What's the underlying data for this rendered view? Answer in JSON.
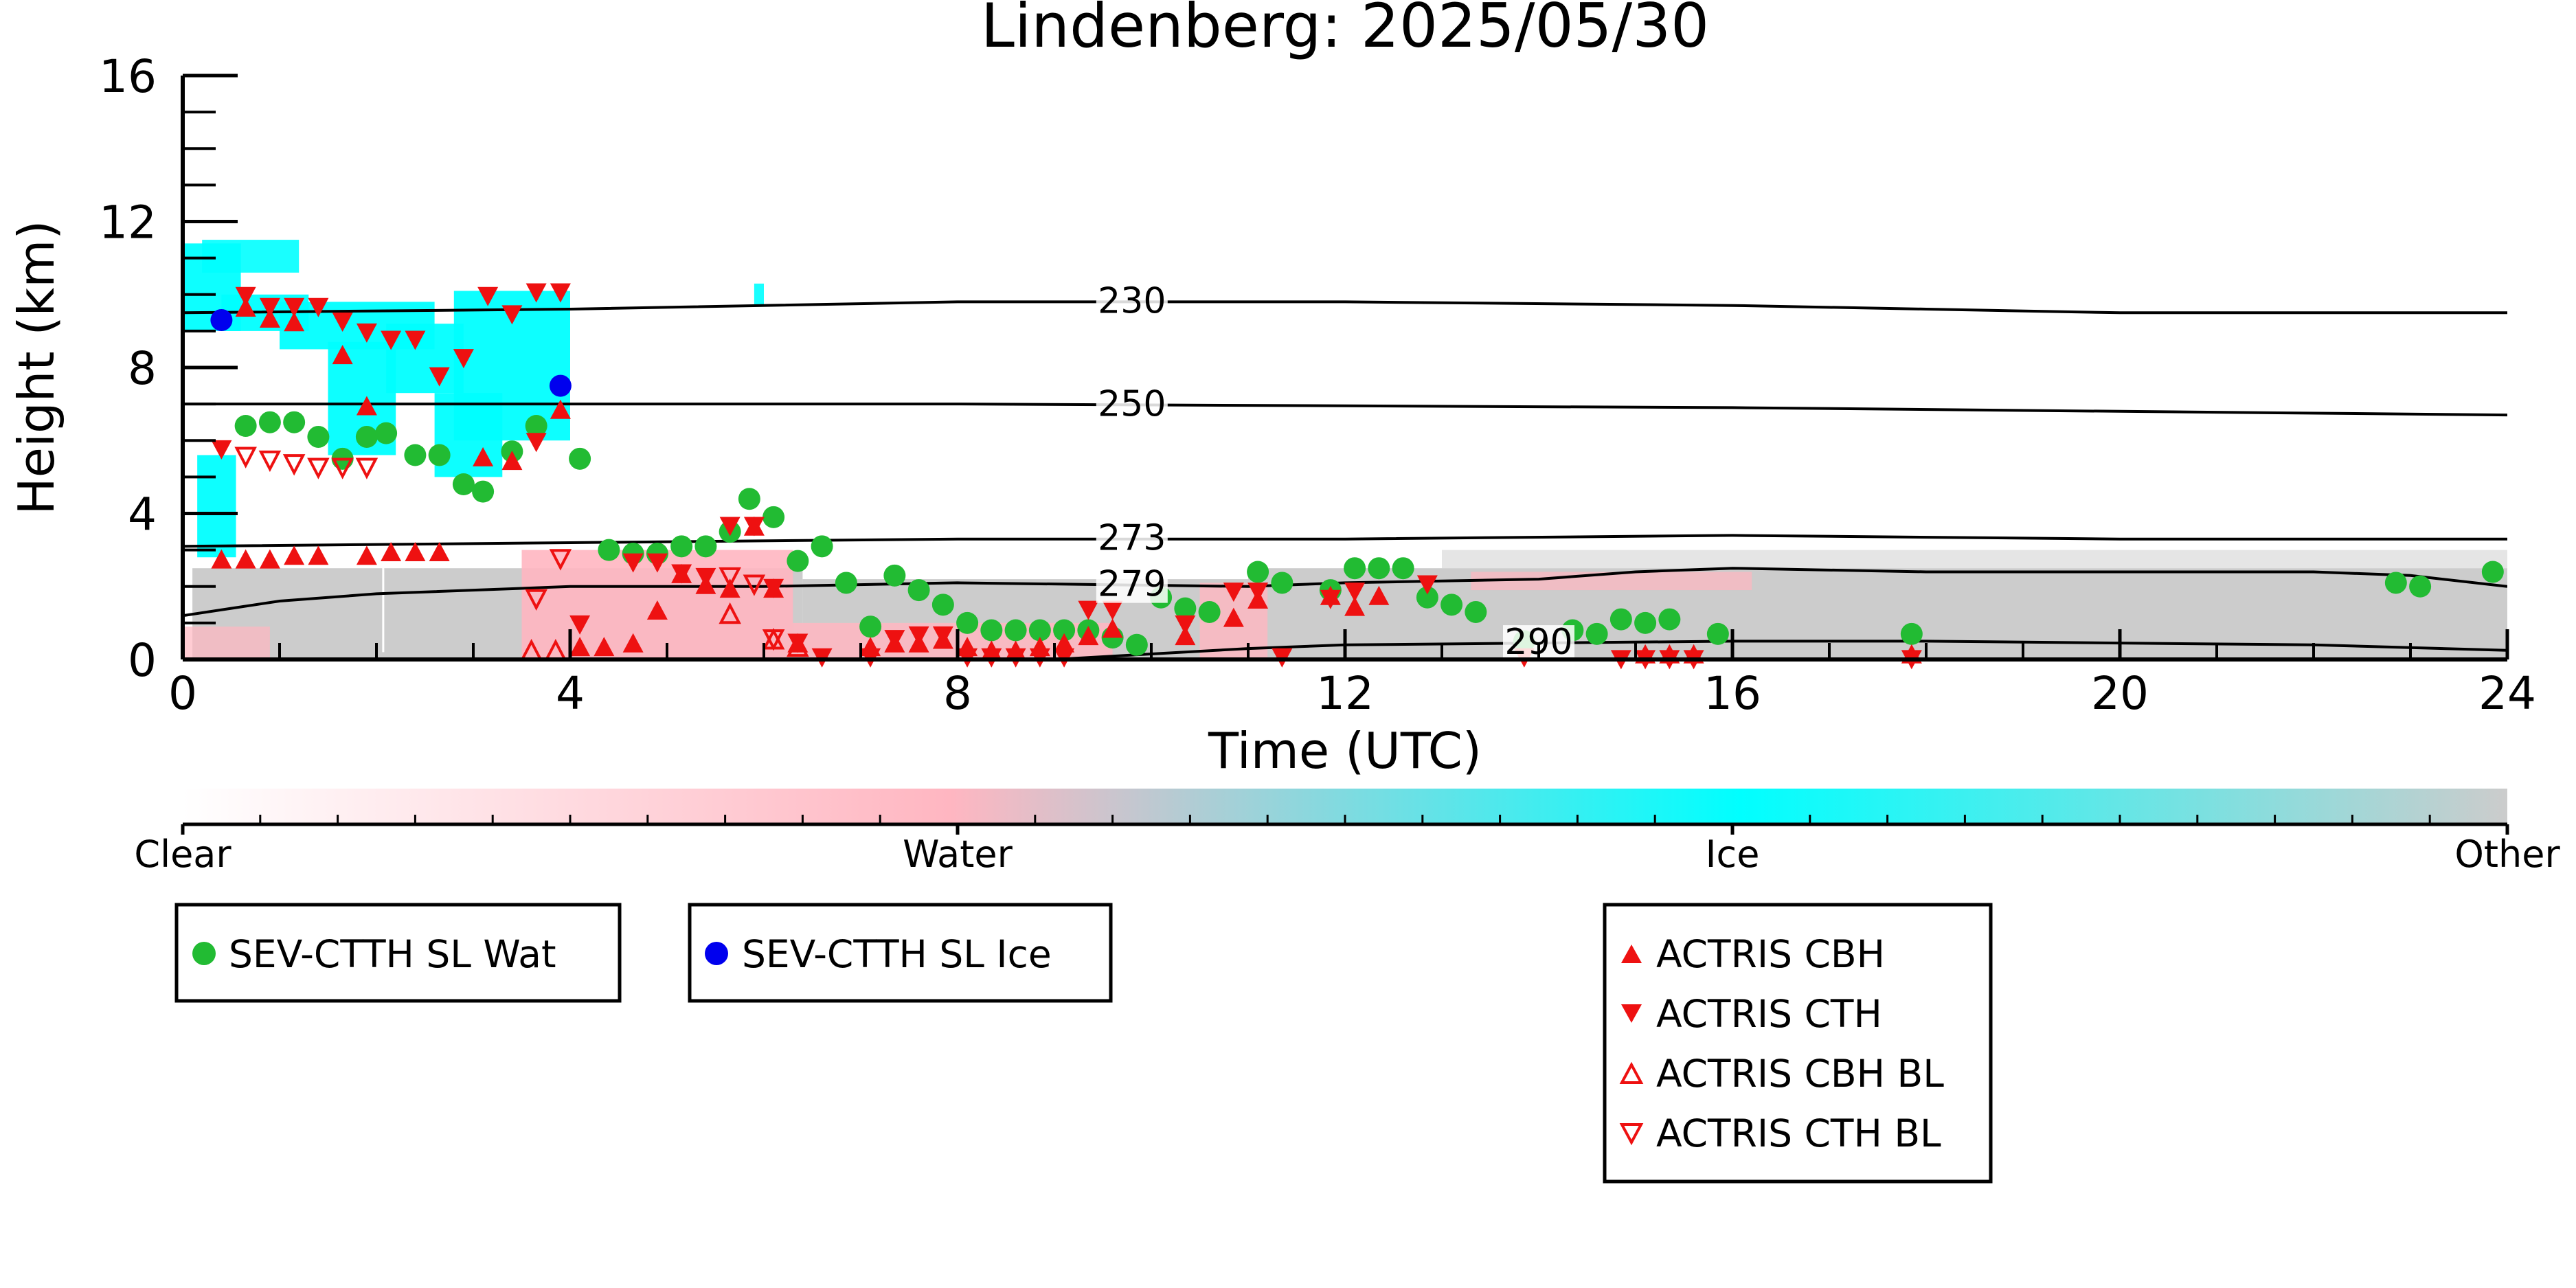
{
  "chart_data": {
    "type": "scatter",
    "title": "Lindenberg: 2025/05/30",
    "xlabel": "Time (UTC)",
    "ylabel": "Height (km)",
    "xlim": [
      0,
      24
    ],
    "ylim": [
      0,
      16
    ],
    "xticks": [
      "0",
      "4",
      "8",
      "12",
      "16",
      "20",
      "24"
    ],
    "yticks": [
      "0",
      "4",
      "8",
      "12",
      "16"
    ],
    "colorbar": {
      "labels": [
        "Clear",
        "Water",
        "Ice",
        "Other"
      ],
      "colors": [
        "#ffffff",
        "#ffb6c1",
        "#00ffff",
        "#cccccc"
      ]
    },
    "isotherms": [
      {
        "label": "230",
        "label_x": 9.8,
        "points": [
          [
            0,
            9.5
          ],
          [
            4,
            9.6
          ],
          [
            8,
            9.8
          ],
          [
            12,
            9.8
          ],
          [
            16,
            9.7
          ],
          [
            18,
            9.6
          ],
          [
            20,
            9.5
          ],
          [
            24,
            9.5
          ]
        ]
      },
      {
        "label": "250",
        "label_x": 9.8,
        "points": [
          [
            0,
            7.0
          ],
          [
            4,
            7.0
          ],
          [
            8,
            7.0
          ],
          [
            12,
            6.95
          ],
          [
            16,
            6.9
          ],
          [
            20,
            6.8
          ],
          [
            24,
            6.7
          ]
        ]
      },
      {
        "label": "273",
        "label_x": 9.8,
        "points": [
          [
            0,
            3.1
          ],
          [
            4,
            3.2
          ],
          [
            8,
            3.3
          ],
          [
            12,
            3.3
          ],
          [
            16,
            3.4
          ],
          [
            20,
            3.3
          ],
          [
            24,
            3.3
          ]
        ]
      },
      {
        "label": "279",
        "label_x": 9.8,
        "points": [
          [
            0,
            1.2
          ],
          [
            0.5,
            1.4
          ],
          [
            1,
            1.6
          ],
          [
            2,
            1.8
          ],
          [
            4,
            2.0
          ],
          [
            6,
            2.0
          ],
          [
            8,
            2.1
          ],
          [
            9.5,
            2.05
          ],
          [
            11,
            2.0
          ],
          [
            12,
            2.1
          ],
          [
            14,
            2.2
          ],
          [
            15,
            2.4
          ],
          [
            16,
            2.5
          ],
          [
            18,
            2.4
          ],
          [
            20,
            2.4
          ],
          [
            22,
            2.4
          ],
          [
            23,
            2.3
          ],
          [
            24,
            2.0
          ]
        ]
      },
      {
        "label": "290",
        "label_x": 14.0,
        "points": [
          [
            9,
            0.0
          ],
          [
            10,
            0.15
          ],
          [
            11,
            0.3
          ],
          [
            12,
            0.4
          ],
          [
            14,
            0.45
          ],
          [
            16,
            0.5
          ],
          [
            18,
            0.5
          ],
          [
            20,
            0.45
          ],
          [
            22,
            0.4
          ],
          [
            24,
            0.25
          ]
        ]
      }
    ],
    "series": [
      {
        "name": "SEV-CTTH SL Wat",
        "marker": "circle",
        "color": "#22bb33",
        "points": [
          [
            0.65,
            6.4
          ],
          [
            0.9,
            6.5
          ],
          [
            1.15,
            6.5
          ],
          [
            1.4,
            6.1
          ],
          [
            1.65,
            5.5
          ],
          [
            1.9,
            6.1
          ],
          [
            2.1,
            6.2
          ],
          [
            2.4,
            5.6
          ],
          [
            2.65,
            5.6
          ],
          [
            2.9,
            4.8
          ],
          [
            3.1,
            4.6
          ],
          [
            3.4,
            5.7
          ],
          [
            3.65,
            6.4
          ],
          [
            4.1,
            5.5
          ],
          [
            4.4,
            3.0
          ],
          [
            4.65,
            2.9
          ],
          [
            4.9,
            2.9
          ],
          [
            5.15,
            3.1
          ],
          [
            5.4,
            3.1
          ],
          [
            5.65,
            3.5
          ],
          [
            5.85,
            4.4
          ],
          [
            6.1,
            3.9
          ],
          [
            6.35,
            2.7
          ],
          [
            6.6,
            3.1
          ],
          [
            6.85,
            2.1
          ],
          [
            7.1,
            0.9
          ],
          [
            7.35,
            2.3
          ],
          [
            7.6,
            1.9
          ],
          [
            7.85,
            1.5
          ],
          [
            8.1,
            1.0
          ],
          [
            8.35,
            0.8
          ],
          [
            8.6,
            0.8
          ],
          [
            8.85,
            0.8
          ],
          [
            9.1,
            0.8
          ],
          [
            9.35,
            0.8
          ],
          [
            9.6,
            0.6
          ],
          [
            9.85,
            0.4
          ],
          [
            10.1,
            1.7
          ],
          [
            10.35,
            1.4
          ],
          [
            10.6,
            1.3
          ],
          [
            11.1,
            2.4
          ],
          [
            11.35,
            2.1
          ],
          [
            11.85,
            1.9
          ],
          [
            12.1,
            2.5
          ],
          [
            12.35,
            2.5
          ],
          [
            12.6,
            2.5
          ],
          [
            12.85,
            1.7
          ],
          [
            13.1,
            1.5
          ],
          [
            13.35,
            1.3
          ],
          [
            13.85,
            0.5
          ],
          [
            14.35,
            0.8
          ],
          [
            14.6,
            0.7
          ],
          [
            14.85,
            1.1
          ],
          [
            15.1,
            1.0
          ],
          [
            15.35,
            1.1
          ],
          [
            15.85,
            0.7
          ],
          [
            17.85,
            0.7
          ],
          [
            22.85,
            2.1
          ],
          [
            23.1,
            2.0
          ],
          [
            23.85,
            2.4
          ]
        ]
      },
      {
        "name": "SEV-CTTH SL Ice",
        "marker": "circle",
        "color": "#0000ee",
        "points": [
          [
            0.4,
            9.3
          ],
          [
            3.9,
            7.5
          ]
        ]
      },
      {
        "name": "ACTRIS CBH",
        "marker": "triangle-up",
        "color": "#ee1111",
        "points": [
          [
            0.4,
            2.7
          ],
          [
            0.65,
            9.6
          ],
          [
            0.9,
            9.3
          ],
          [
            1.15,
            9.2
          ],
          [
            0.65,
            2.7
          ],
          [
            0.9,
            2.7
          ],
          [
            1.15,
            2.8
          ],
          [
            1.4,
            2.8
          ],
          [
            1.65,
            8.3
          ],
          [
            1.9,
            6.9
          ],
          [
            1.9,
            2.8
          ],
          [
            2.15,
            2.9
          ],
          [
            2.4,
            2.9
          ],
          [
            2.65,
            2.9
          ],
          [
            3.1,
            5.5
          ],
          [
            3.4,
            5.4
          ],
          [
            3.9,
            6.8
          ],
          [
            4.1,
            0.3
          ],
          [
            4.35,
            0.3
          ],
          [
            4.65,
            0.4
          ],
          [
            4.9,
            1.3
          ],
          [
            5.15,
            2.3
          ],
          [
            5.4,
            2.0
          ],
          [
            5.65,
            1.9
          ],
          [
            5.9,
            3.6
          ],
          [
            6.1,
            1.9
          ],
          [
            6.35,
            0.4
          ],
          [
            7.1,
            0.3
          ],
          [
            7.35,
            0.4
          ],
          [
            7.6,
            0.4
          ],
          [
            7.85,
            0.5
          ],
          [
            8.1,
            0.3
          ],
          [
            8.35,
            0.2
          ],
          [
            8.6,
            0.2
          ],
          [
            8.85,
            0.3
          ],
          [
            9.1,
            0.4
          ],
          [
            9.35,
            0.6
          ],
          [
            9.6,
            0.8
          ],
          [
            10.35,
            0.6
          ],
          [
            10.85,
            1.1
          ],
          [
            11.1,
            1.6
          ],
          [
            11.85,
            1.7
          ],
          [
            12.1,
            1.4
          ],
          [
            12.35,
            1.7
          ],
          [
            15.1,
            0.1
          ],
          [
            15.35,
            0.1
          ],
          [
            15.6,
            0.1
          ],
          [
            17.85,
            0.1
          ]
        ]
      },
      {
        "name": "ACTRIS CTH",
        "marker": "triangle-down",
        "color": "#ee1111",
        "points": [
          [
            0.4,
            5.8
          ],
          [
            0.65,
            10.0
          ],
          [
            0.9,
            9.7
          ],
          [
            1.15,
            9.7
          ],
          [
            1.4,
            9.7
          ],
          [
            1.65,
            9.3
          ],
          [
            1.9,
            9.0
          ],
          [
            2.15,
            8.8
          ],
          [
            2.4,
            8.8
          ],
          [
            2.65,
            7.8
          ],
          [
            2.9,
            8.3
          ],
          [
            3.15,
            10.0
          ],
          [
            3.4,
            9.5
          ],
          [
            3.65,
            10.1
          ],
          [
            3.9,
            10.1
          ],
          [
            3.65,
            6.0
          ],
          [
            4.1,
            1.0
          ],
          [
            4.65,
            2.7
          ],
          [
            4.9,
            2.7
          ],
          [
            5.15,
            2.4
          ],
          [
            5.4,
            2.3
          ],
          [
            5.65,
            3.7
          ],
          [
            5.9,
            3.7
          ],
          [
            6.1,
            2.0
          ],
          [
            6.35,
            0.5
          ],
          [
            6.6,
            0.1
          ],
          [
            7.1,
            0.1
          ],
          [
            7.35,
            0.6
          ],
          [
            7.6,
            0.7
          ],
          [
            7.85,
            0.7
          ],
          [
            8.1,
            0.1
          ],
          [
            8.35,
            0.1
          ],
          [
            8.6,
            0.1
          ],
          [
            8.85,
            0.1
          ],
          [
            9.1,
            0.1
          ],
          [
            9.35,
            1.4
          ],
          [
            9.6,
            1.4
          ],
          [
            10.35,
            1.0
          ],
          [
            10.85,
            1.9
          ],
          [
            11.1,
            1.9
          ],
          [
            11.35,
            0.1
          ],
          [
            11.85,
            1.7
          ],
          [
            12.1,
            1.9
          ],
          [
            12.85,
            2.1
          ],
          [
            13.85,
            0.1
          ],
          [
            14.85,
            0.05
          ],
          [
            15.1,
            0.05
          ],
          [
            15.35,
            0.05
          ],
          [
            15.6,
            0.05
          ],
          [
            17.85,
            0.05
          ]
        ]
      },
      {
        "name": "ACTRIS CBH BL",
        "marker": "triangle-up-open",
        "color": "#ee1111",
        "points": [
          [
            3.6,
            0.2
          ],
          [
            3.85,
            0.2
          ],
          [
            5.65,
            1.2
          ],
          [
            6.1,
            0.5
          ],
          [
            6.35,
            0.3
          ]
        ]
      },
      {
        "name": "ACTRIS CTH BL",
        "marker": "triangle-down-open",
        "color": "#ee1111",
        "points": [
          [
            0.65,
            5.6
          ],
          [
            0.9,
            5.5
          ],
          [
            1.15,
            5.4
          ],
          [
            1.4,
            5.3
          ],
          [
            1.65,
            5.3
          ],
          [
            1.9,
            5.3
          ],
          [
            3.65,
            1.7
          ],
          [
            3.9,
            2.8
          ],
          [
            5.65,
            2.3
          ],
          [
            5.9,
            2.1
          ],
          [
            6.1,
            0.6
          ]
        ]
      }
    ],
    "legend_groups": [
      [
        "SEV-CTTH SL Wat"
      ],
      [
        "SEV-CTTH SL Ice"
      ],
      [
        "ACTRIS CBH",
        "ACTRIS CTH",
        "ACTRIS CBH BL",
        "ACTRIS CTH BL"
      ]
    ]
  }
}
